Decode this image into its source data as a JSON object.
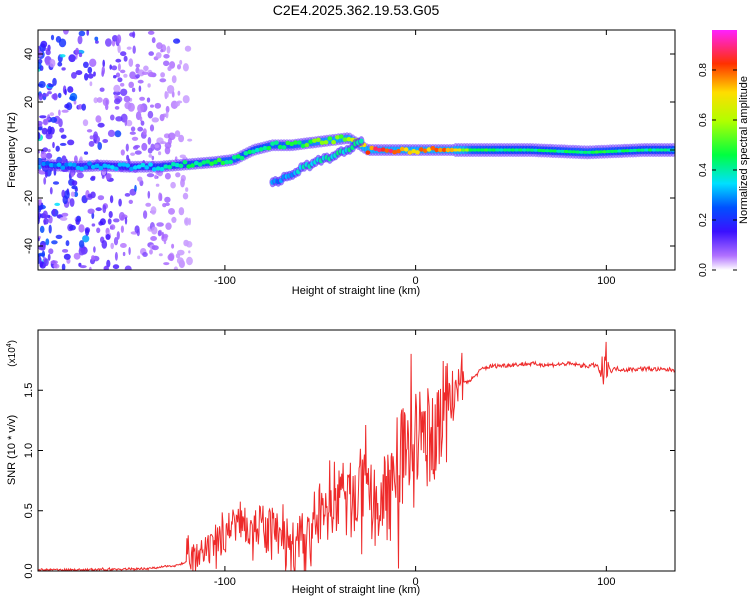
{
  "page_title": "C2E4.2025.362.19.53.G05",
  "colors": {
    "snr_line": "#ee2a2a",
    "spectrogram_low": "#9b55ef",
    "spectrogram_high": "#ff2060"
  },
  "chart_data": [
    {
      "type": "heatmap",
      "title": "C2E4.2025.362.19.53.G05",
      "xlabel": "Height of straight line (km)",
      "ylabel": "Frequency (Hz)",
      "xlim": [
        -198,
        136
      ],
      "ylim": [
        -50,
        50
      ],
      "xticks": [
        -100,
        0,
        100
      ],
      "xtick_labels": [
        "-100",
        "0",
        "100"
      ],
      "yticks": [
        -40,
        -20,
        0,
        20,
        40
      ],
      "ytick_labels": [
        "-40",
        "-20",
        "0",
        "20",
        "40"
      ],
      "colorbar": {
        "label": "Normalized spectral amplitude",
        "range": [
          0.0,
          0.96
        ],
        "ticks": [
          0.0,
          0.2,
          0.4,
          0.6,
          0.8
        ],
        "tick_labels": [
          "0.0",
          "0.2",
          "0.4",
          "0.6",
          "0.8"
        ]
      },
      "ridge_main": {
        "x": [
          -195,
          -180,
          -165,
          -150,
          -135,
          -120,
          -105,
          -95,
          -85,
          -75,
          -65,
          -55,
          -45,
          -35,
          -25,
          -15,
          -5,
          5,
          15,
          30,
          60,
          90,
          120,
          136
        ],
        "freq": [
          -6,
          -7,
          -6.5,
          -7,
          -7,
          -6,
          -5,
          -4,
          0,
          2,
          2,
          3,
          4,
          5,
          0,
          0,
          0,
          0,
          0,
          0,
          0,
          -1,
          0,
          0
        ],
        "amplitude": [
          0.3,
          0.35,
          0.35,
          0.35,
          0.4,
          0.45,
          0.5,
          0.5,
          0.45,
          0.5,
          0.5,
          0.55,
          0.6,
          0.6,
          0.85,
          0.9,
          0.8,
          0.85,
          0.9,
          0.5,
          0.45,
          0.5,
          0.45,
          0.45
        ]
      },
      "ridge_secondary": {
        "x": [
          -75,
          -65,
          -55,
          -45,
          -35,
          -28
        ],
        "freq": [
          -14,
          -10,
          -6,
          -3,
          0,
          4
        ],
        "amplitude": [
          0.3,
          0.35,
          0.4,
          0.4,
          0.45,
          0.4
        ]
      },
      "noise_region_x": [
        -198,
        -118
      ]
    },
    {
      "type": "line",
      "xlabel": "Height of straight line (km)",
      "ylabel": "SNR (10 * v/v)",
      "multiplier_label": "(x10",
      "multiplier_exponent": "4",
      "xlim": [
        -198,
        136
      ],
      "ylim": [
        0,
        2.0
      ],
      "xticks": [
        -100,
        0,
        100
      ],
      "xtick_labels": [
        "-100",
        "0",
        "100"
      ],
      "yticks": [
        0.0,
        0.5,
        1.0,
        1.5
      ],
      "ytick_labels": [
        "0.0",
        "0.5",
        "1.0",
        "1.5"
      ],
      "series": [
        {
          "name": "SNR",
          "x": [
            -198,
            -170,
            -140,
            -125,
            -115,
            -105,
            -100,
            -95,
            -90,
            -85,
            -80,
            -75,
            -70,
            -65,
            -60,
            -55,
            -50,
            -45,
            -40,
            -35,
            -30,
            -25,
            -20,
            -15,
            -10,
            -5,
            0,
            5,
            10,
            15,
            20,
            25,
            30,
            35,
            40,
            50,
            60,
            70,
            80,
            90,
            95,
            98,
            100,
            102,
            105,
            110,
            120,
            130,
            136
          ],
          "y": [
            0.01,
            0.01,
            0.02,
            0.05,
            0.1,
            0.2,
            0.32,
            0.4,
            0.42,
            0.38,
            0.35,
            0.3,
            0.25,
            0.18,
            0.2,
            0.3,
            0.45,
            0.6,
            0.65,
            0.55,
            0.7,
            0.6,
            0.5,
            0.7,
            0.85,
            1.0,
            1.1,
            1.1,
            1.15,
            1.4,
            1.5,
            1.55,
            1.6,
            1.68,
            1.7,
            1.71,
            1.72,
            1.71,
            1.72,
            1.7,
            1.71,
            1.6,
            1.8,
            1.66,
            1.68,
            1.67,
            1.68,
            1.67,
            1.67
          ]
        }
      ]
    }
  ]
}
